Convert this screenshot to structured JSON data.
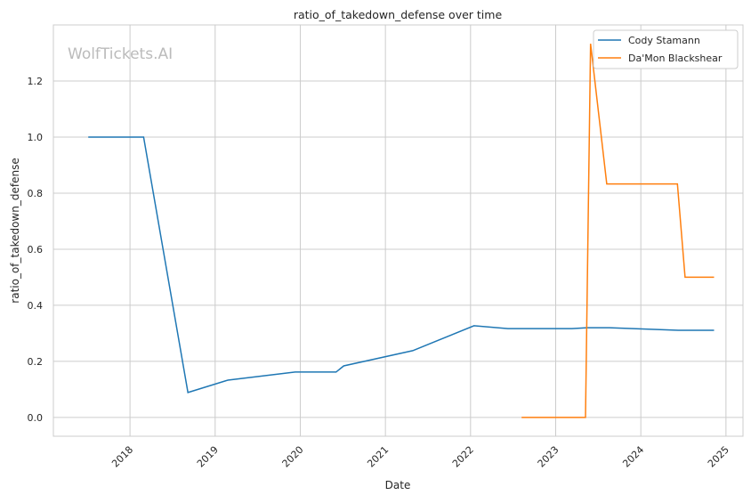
{
  "watermark": "WolfTickets.AI",
  "chart_data": {
    "type": "line",
    "title": "ratio_of_takedown_defense over time",
    "xlabel": "Date",
    "ylabel": "ratio_of_takedown_defense",
    "xlim": [
      2017.1,
      2025.2
    ],
    "ylim": [
      -0.067,
      1.4
    ],
    "x_ticks": [
      "2018",
      "2019",
      "2020",
      "2021",
      "2022",
      "2023",
      "2024",
      "2025"
    ],
    "y_ticks": [
      "0.0",
      "0.2",
      "0.4",
      "0.6",
      "0.8",
      "1.0",
      "1.2"
    ],
    "grid": true,
    "legend_position": "top-right",
    "series": [
      {
        "name": "Cody Stamann",
        "color": "#1f77b4",
        "x": [
          2017.51,
          2018.16,
          2018.68,
          2019.15,
          2019.94,
          2020.42,
          2020.51,
          2021.32,
          2022.04,
          2022.44,
          2023.19,
          2023.37,
          2023.63,
          2024.44,
          2024.86
        ],
        "y": [
          1.0,
          1.0,
          0.089,
          0.133,
          0.162,
          0.162,
          0.184,
          0.238,
          0.327,
          0.317,
          0.317,
          0.32,
          0.32,
          0.311,
          0.311
        ]
      },
      {
        "name": "Da'Mon Blackshear",
        "color": "#ff7f0e",
        "x": [
          2022.6,
          2023.35,
          2023.41,
          2023.6,
          2024.43,
          2024.52,
          2024.86
        ],
        "y": [
          0.0,
          0.0,
          1.333,
          0.833,
          0.833,
          0.5,
          0.5
        ]
      }
    ]
  }
}
